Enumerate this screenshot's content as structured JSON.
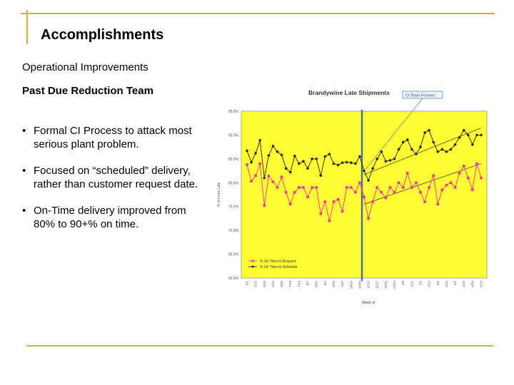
{
  "colors": {
    "rule": "#c9b53a",
    "plot_bg": "#ffff33",
    "ontime_request": "#ff3399",
    "ontime_schedule": "#222222",
    "divider": "#4a6da8"
  },
  "slide": {
    "title": "Accomplishments",
    "subtitle": "Operational Improvements",
    "section": "Past Due Reduction Team",
    "bullet_icon": "•",
    "bullets": [
      "Formal CI Process to attack most serious plant problem.",
      "Focused on “scheduled” delivery, rather than customer request date.",
      "On-Time delivery improved from 80% to 90+% on time."
    ]
  },
  "chart_data": {
    "type": "line",
    "title": "Brandywine Late Shipments",
    "annotation": "CI Team Formed",
    "ylabel": "% of Lines Late",
    "xlabel": "Week of",
    "ylim": [
      0.6,
      0.95
    ],
    "yticks": [
      "95.0%",
      "90.0%",
      "85.0%",
      "80.0%",
      "75.0%",
      "70.0%",
      "65.0%",
      "60.0%"
    ],
    "grid": false,
    "legend": "bottom-left inside plot",
    "team_formed_index": 27,
    "x": [
      "5/1",
      "5/8",
      "5/15",
      "5/22",
      "5/29",
      "6/5",
      "6/12",
      "6/19",
      "6/26",
      "7/3",
      "7/10",
      "7/17",
      "7/24",
      "7/31",
      "8/7",
      "8/14",
      "8/21",
      "8/28",
      "9/4",
      "9/11",
      "9/18",
      "9/25",
      "10/2",
      "10/9",
      "10/16",
      "10/23",
      "10/30",
      "11/6",
      "11/13",
      "11/20",
      "11/27",
      "12/4",
      "12/11",
      "12/18",
      "12/25",
      "1/1",
      "1/8",
      "1/15",
      "1/22",
      "1/29",
      "2/5",
      "2/12",
      "2/19",
      "2/26",
      "3/5",
      "3/12",
      "3/19",
      "3/26",
      "4/2",
      "4/9",
      "4/16",
      "4/23",
      "4/30",
      "5/7",
      "5/14"
    ],
    "series": [
      {
        "name": "% On Time to Request",
        "values": [
          0.838,
          0.803,
          0.815,
          0.84,
          0.752,
          0.814,
          0.802,
          0.79,
          0.812,
          0.78,
          0.755,
          0.78,
          0.79,
          0.79,
          0.77,
          0.79,
          0.79,
          0.735,
          0.76,
          0.72,
          0.76,
          0.765,
          0.74,
          0.79,
          0.79,
          0.78,
          0.8,
          0.77,
          0.725,
          0.76,
          0.79,
          0.78,
          0.768,
          0.79,
          0.78,
          0.8,
          0.79,
          0.82,
          0.79,
          0.8,
          0.78,
          0.76,
          0.79,
          0.815,
          0.755,
          0.785,
          0.795,
          0.8,
          0.79,
          0.82,
          0.835,
          0.81,
          0.785,
          0.84,
          0.81
        ]
      },
      {
        "name": "% On Time to Schedule",
        "values": [
          0.867,
          0.843,
          0.862,
          0.889,
          0.81,
          0.857,
          0.877,
          0.865,
          0.858,
          0.83,
          0.822,
          0.856,
          0.84,
          0.845,
          0.83,
          0.85,
          0.85,
          0.815,
          0.855,
          0.86,
          0.84,
          0.837,
          0.842,
          0.843,
          0.842,
          0.84,
          0.855,
          0.825,
          0.805,
          0.83,
          0.85,
          0.865,
          0.845,
          0.847,
          0.85,
          0.87,
          0.885,
          0.89,
          0.87,
          0.86,
          0.875,
          0.905,
          0.91,
          0.885,
          0.865,
          0.87,
          0.865,
          0.87,
          0.88,
          0.895,
          0.91,
          0.9,
          0.88,
          0.9,
          0.9
        ]
      }
    ]
  }
}
